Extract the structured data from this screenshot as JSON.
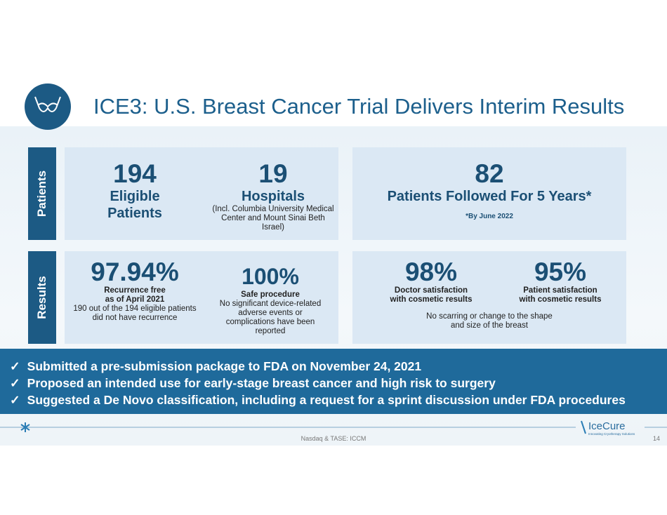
{
  "header": {
    "title": "ICE3: U.S. Breast Cancer Trial Delivers Interim Results"
  },
  "patients": {
    "label": "Patients",
    "left": [
      {
        "value": "194",
        "label": "Eligible Patients"
      },
      {
        "value": "19",
        "label": "Hospitals",
        "note": "(Incl. Columbia University Medical Center and Mount Sinai Beth Israel)"
      }
    ],
    "right": {
      "value": "82",
      "label": "Patients Followed For 5 Years*",
      "note": "*By June 2022"
    }
  },
  "results": {
    "label": "Results",
    "left": [
      {
        "value": "97.94%",
        "label": "Recurrence free as of April 2021",
        "note": "190 out of the 194 eligible patients did not have recurrence"
      },
      {
        "value": "100%",
        "label": "Safe procedure",
        "note": "No significant device-related adverse events or complications have been reported"
      }
    ],
    "right": [
      {
        "value": "98%",
        "label": "Doctor satisfaction with cosmetic results"
      },
      {
        "value": "95%",
        "label": "Patient satisfaction with cosmetic results"
      }
    ],
    "right_note": "No scarring or change to the shape and size of the breast"
  },
  "bullets": [
    "Submitted a pre-submission package to FDA on November 24, 2021",
    "Proposed an intended use for early-stage breast cancer and high risk to surgery",
    "Suggested a De Novo classification, including a request for a sprint discussion under FDA procedures"
  ],
  "footer": {
    "center": "Nasdaq & TASE: ICCM",
    "page": "14",
    "logo": "IceCure",
    "tagline": "Innovating Cryotherapy Solutions"
  }
}
